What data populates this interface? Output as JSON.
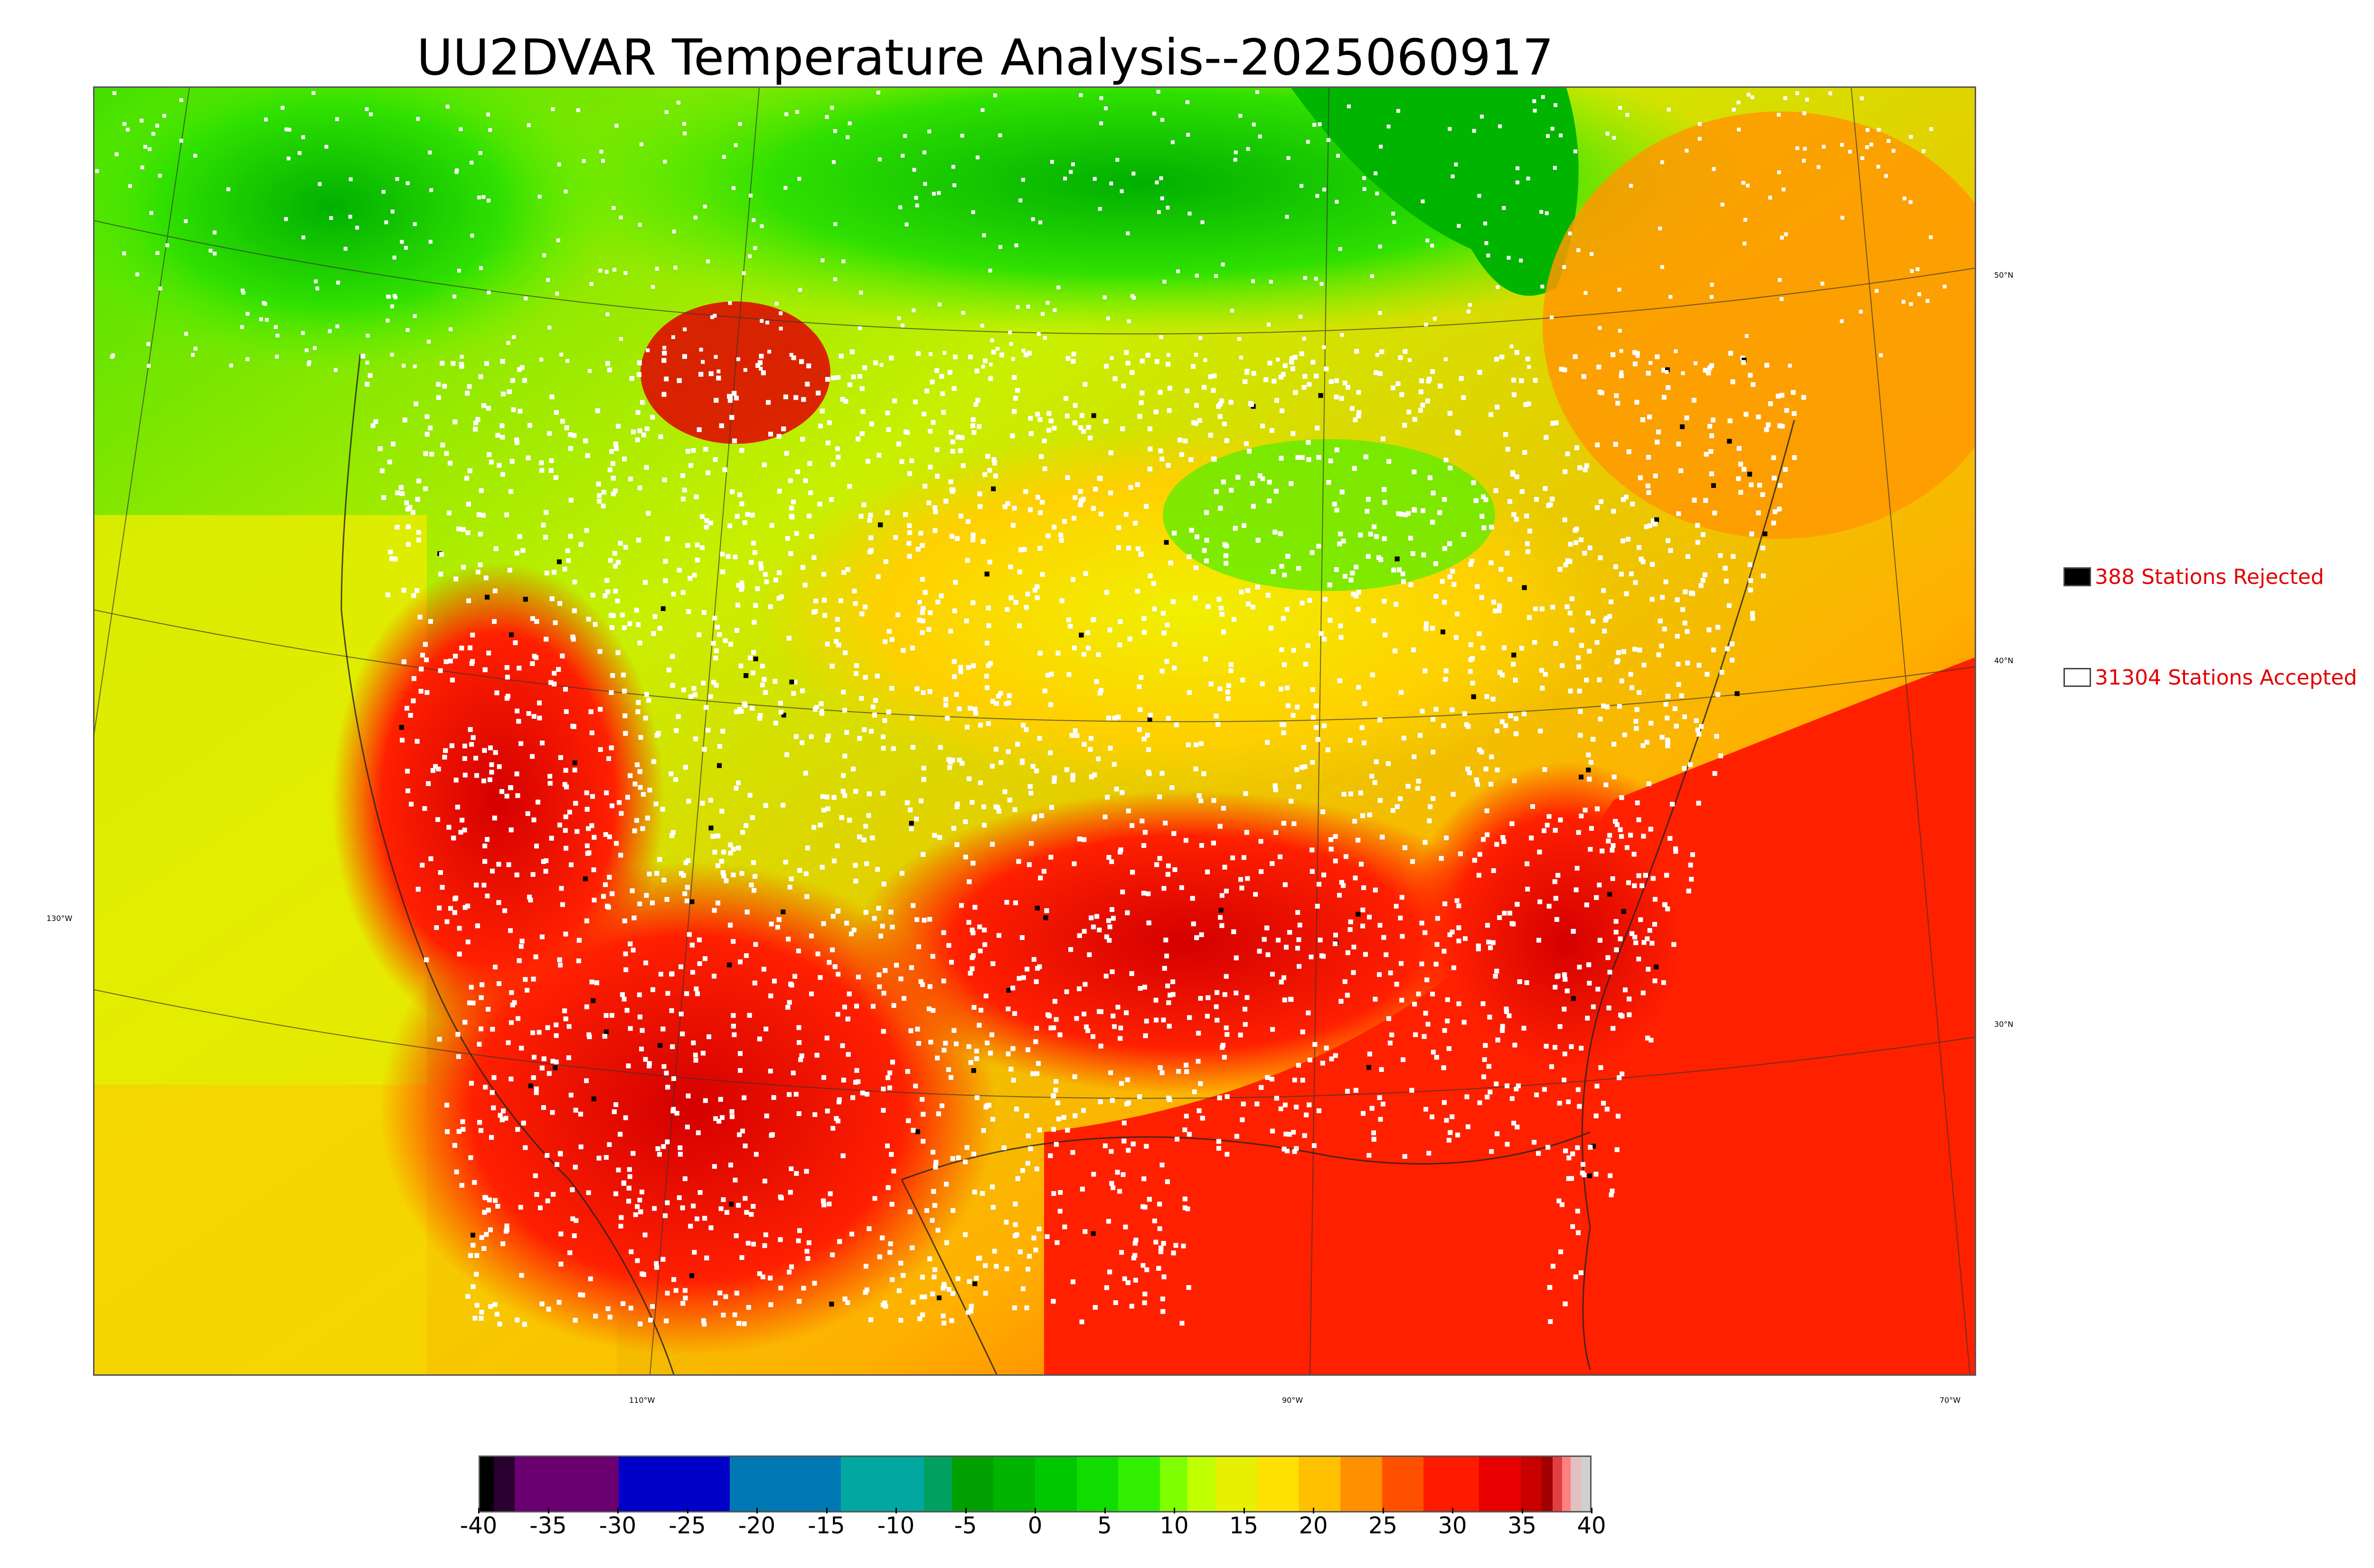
{
  "title": "UU2DVAR Temperature Analysis--2025060917",
  "legend": {
    "rejected": {
      "label": "388 Stations Rejected",
      "swatch_color": "#000000"
    },
    "accepted": {
      "label": "31304 Stations Accepted",
      "swatch_color": "#ffffff"
    }
  },
  "map": {
    "lat_labels": [
      "50°N",
      "40°N",
      "30°N"
    ],
    "lon_labels": [
      "130°W",
      "110°W",
      "90°W",
      "70°W"
    ],
    "colors": {
      "ocean_pacific": "#e6f000",
      "ocean_atlantic": "#ff2a00",
      "gulf": "#ff1a00",
      "canada_north": "#44e000",
      "hot_core": "#e60000",
      "warm": "#ff8c00",
      "mild": "#ffd000",
      "station_accepted": "#ffffff",
      "station_rejected": "#000000"
    }
  },
  "colorbar": {
    "ticks": [
      "-40",
      "-35",
      "-30",
      "-25",
      "-20",
      "-15",
      "-10",
      "-5",
      "0",
      "5",
      "10",
      "15",
      "20",
      "25",
      "30",
      "35",
      "40"
    ],
    "range": [
      -40,
      40
    ],
    "segments": [
      {
        "from": -40,
        "to": -39,
        "color": "#000000"
      },
      {
        "from": -39,
        "to": -37.5,
        "color": "#2a0030"
      },
      {
        "from": -37.5,
        "to": -30,
        "color": "#6a0070"
      },
      {
        "from": -30,
        "to": -22,
        "color": "#0000c8"
      },
      {
        "from": -22,
        "to": -14,
        "color": "#0078b4"
      },
      {
        "from": -14,
        "to": -8,
        "color": "#00a8a0"
      },
      {
        "from": -8,
        "to": -6,
        "color": "#00a060"
      },
      {
        "from": -6,
        "to": -3,
        "color": "#00a000"
      },
      {
        "from": -3,
        "to": 0,
        "color": "#00b400"
      },
      {
        "from": 0,
        "to": 3,
        "color": "#00c800"
      },
      {
        "from": 3,
        "to": 6,
        "color": "#10dc00"
      },
      {
        "from": 6,
        "to": 9,
        "color": "#30f000"
      },
      {
        "from": 9,
        "to": 11,
        "color": "#80ff00"
      },
      {
        "from": 11,
        "to": 13,
        "color": "#c0ff00"
      },
      {
        "from": 13,
        "to": 16,
        "color": "#e6f000"
      },
      {
        "from": 16,
        "to": 19,
        "color": "#ffe000"
      },
      {
        "from": 19,
        "to": 22,
        "color": "#ffc000"
      },
      {
        "from": 22,
        "to": 25,
        "color": "#ff9000"
      },
      {
        "from": 25,
        "to": 28,
        "color": "#ff5000"
      },
      {
        "from": 28,
        "to": 32,
        "color": "#ff1a00"
      },
      {
        "from": 32,
        "to": 35,
        "color": "#e60000"
      },
      {
        "from": 35,
        "to": 36.5,
        "color": "#c80000"
      },
      {
        "from": 36.5,
        "to": 37.3,
        "color": "#a00000"
      },
      {
        "from": 37.3,
        "to": 38,
        "color": "#e04040"
      },
      {
        "from": 38,
        "to": 38.6,
        "color": "#ff8080"
      },
      {
        "from": 38.6,
        "to": 39.4,
        "color": "#e0c0c0"
      },
      {
        "from": 39.4,
        "to": 40,
        "color": "#d0d0d0"
      }
    ]
  }
}
